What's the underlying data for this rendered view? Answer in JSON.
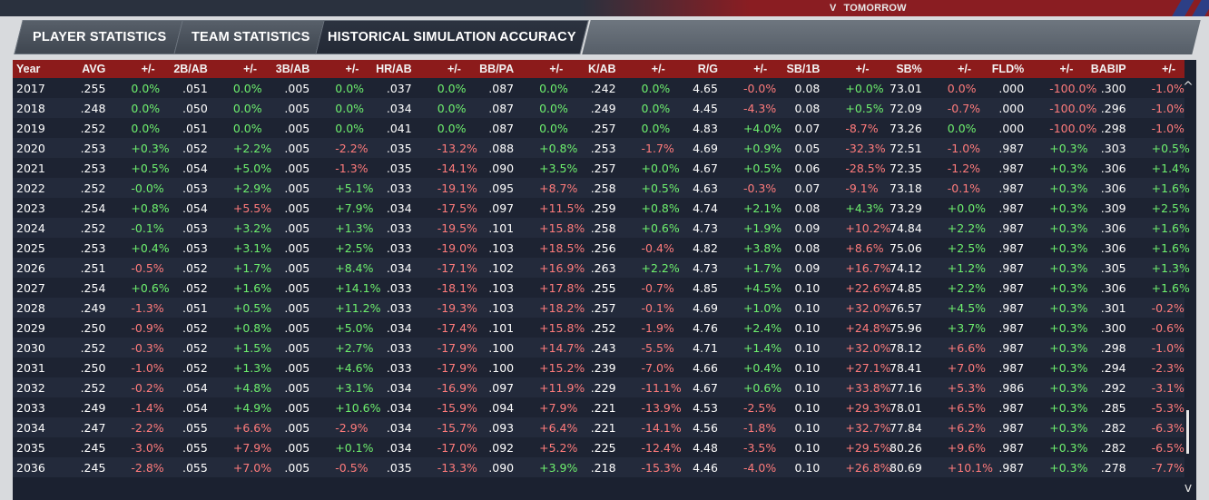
{
  "topbar": {
    "tomorrow_label": "TOMORROW",
    "chevron": "V",
    "accent": "#8a1d22"
  },
  "tabs": [
    {
      "label": "PLAYER STATISTICS"
    },
    {
      "label": "TEAM STATISTICS"
    },
    {
      "label": "HISTORICAL SIMULATION ACCURACY"
    }
  ],
  "table": {
    "headers": [
      "Year",
      "AVG",
      "+/-",
      "2B/AB",
      "+/-",
      "3B/AB",
      "+/-",
      "HR/AB",
      "+/-",
      "BB/PA",
      "+/-",
      "K/AB",
      "+/-",
      "R/G",
      "+/-",
      "SB/1B",
      "+/-",
      "SB%",
      "+/-",
      "FLD%",
      "+/-",
      "BABIP",
      "+/-"
    ],
    "rows": [
      [
        "2017",
        ".255",
        "0.0%",
        ".051",
        "0.0%",
        ".005",
        "0.0%",
        ".037",
        "0.0%",
        ".087",
        "0.0%",
        ".242",
        "0.0%",
        "4.65",
        "-0.0%",
        "0.08",
        "+0.0%",
        "73.01",
        "0.0%",
        ".000",
        "-100.0%",
        ".300",
        "-1.0%"
      ],
      [
        "2018",
        ".248",
        "0.0%",
        ".050",
        "0.0%",
        ".005",
        "0.0%",
        ".034",
        "0.0%",
        ".087",
        "0.0%",
        ".249",
        "0.0%",
        "4.45",
        "-4.3%",
        "0.08",
        "+0.5%",
        "72.09",
        "-0.7%",
        ".000",
        "-100.0%",
        ".296",
        "-1.0%"
      ],
      [
        "2019",
        ".252",
        "0.0%",
        ".051",
        "0.0%",
        ".005",
        "0.0%",
        ".041",
        "0.0%",
        ".087",
        "0.0%",
        ".257",
        "0.0%",
        "4.83",
        "+4.0%",
        "0.07",
        "-8.7%",
        "73.26",
        "0.0%",
        ".000",
        "-100.0%",
        ".298",
        "-1.0%"
      ],
      [
        "2020",
        ".253",
        "+0.3%",
        ".052",
        "+2.2%",
        ".005",
        "-2.2%",
        ".035",
        "-13.2%",
        ".088",
        "+0.8%",
        ".253",
        "-1.7%",
        "4.69",
        "+0.9%",
        "0.05",
        "-32.3%",
        "72.51",
        "-1.0%",
        ".987",
        "+0.3%",
        ".303",
        "+0.5%"
      ],
      [
        "2021",
        ".253",
        "+0.5%",
        ".054",
        "+5.0%",
        ".005",
        "-1.3%",
        ".035",
        "-14.1%",
        ".090",
        "+3.5%",
        ".257",
        "+0.0%",
        "4.67",
        "+0.5%",
        "0.06",
        "-28.5%",
        "72.35",
        "-1.2%",
        ".987",
        "+0.3%",
        ".306",
        "+1.4%"
      ],
      [
        "2022",
        ".252",
        "-0.0%",
        ".053",
        "+2.9%",
        ".005",
        "+5.1%",
        ".033",
        "-19.1%",
        ".095",
        "+8.7%",
        ".258",
        "+0.5%",
        "4.63",
        "-0.3%",
        "0.07",
        "-9.1%",
        "73.18",
        "-0.1%",
        ".987",
        "+0.3%",
        ".306",
        "+1.6%"
      ],
      [
        "2023",
        ".254",
        "+0.8%",
        ".054",
        "+5.5%",
        ".005",
        "+7.9%",
        ".034",
        "-17.5%",
        ".097",
        "+11.5%",
        ".259",
        "+0.8%",
        "4.74",
        "+2.1%",
        "0.08",
        "+4.3%",
        "73.29",
        "+0.0%",
        ".987",
        "+0.3%",
        ".309",
        "+2.5%"
      ],
      [
        "2024",
        ".252",
        "-0.1%",
        ".053",
        "+3.2%",
        ".005",
        "+1.3%",
        ".033",
        "-19.5%",
        ".101",
        "+15.8%",
        ".258",
        "+0.6%",
        "4.73",
        "+1.9%",
        "0.09",
        "+10.2%",
        "74.84",
        "+2.2%",
        ".987",
        "+0.3%",
        ".306",
        "+1.6%"
      ],
      [
        "2025",
        ".253",
        "+0.4%",
        ".053",
        "+3.1%",
        ".005",
        "+2.5%",
        ".033",
        "-19.0%",
        ".103",
        "+18.5%",
        ".256",
        "-0.4%",
        "4.82",
        "+3.8%",
        "0.08",
        "+8.6%",
        "75.06",
        "+2.5%",
        ".987",
        "+0.3%",
        ".306",
        "+1.6%"
      ],
      [
        "2026",
        ".251",
        "-0.5%",
        ".052",
        "+1.7%",
        ".005",
        "+8.4%",
        ".034",
        "-17.1%",
        ".102",
        "+16.9%",
        ".263",
        "+2.2%",
        "4.73",
        "+1.7%",
        "0.09",
        "+16.7%",
        "74.12",
        "+1.2%",
        ".987",
        "+0.3%",
        ".305",
        "+1.3%"
      ],
      [
        "2027",
        ".254",
        "+0.6%",
        ".052",
        "+1.6%",
        ".005",
        "+14.1%",
        ".033",
        "-18.1%",
        ".103",
        "+17.8%",
        ".255",
        "-0.7%",
        "4.85",
        "+4.5%",
        "0.10",
        "+22.6%",
        "74.85",
        "+2.2%",
        ".987",
        "+0.3%",
        ".306",
        "+1.6%"
      ],
      [
        "2028",
        ".249",
        "-1.3%",
        ".051",
        "+0.5%",
        ".005",
        "+11.2%",
        ".033",
        "-19.3%",
        ".103",
        "+18.2%",
        ".257",
        "-0.1%",
        "4.69",
        "+1.0%",
        "0.10",
        "+32.0%",
        "76.57",
        "+4.5%",
        ".987",
        "+0.3%",
        ".301",
        "-0.2%"
      ],
      [
        "2029",
        ".250",
        "-0.9%",
        ".052",
        "+0.8%",
        ".005",
        "+5.0%",
        ".034",
        "-17.4%",
        ".101",
        "+15.8%",
        ".252",
        "-1.9%",
        "4.76",
        "+2.4%",
        "0.10",
        "+24.8%",
        "75.96",
        "+3.7%",
        ".987",
        "+0.3%",
        ".300",
        "-0.6%"
      ],
      [
        "2030",
        ".252",
        "-0.3%",
        ".052",
        "+1.5%",
        ".005",
        "+2.7%",
        ".033",
        "-17.9%",
        ".100",
        "+14.7%",
        ".243",
        "-5.5%",
        "4.71",
        "+1.4%",
        "0.10",
        "+32.0%",
        "78.12",
        "+6.6%",
        ".987",
        "+0.3%",
        ".298",
        "-1.0%"
      ],
      [
        "2031",
        ".250",
        "-1.0%",
        ".052",
        "+1.3%",
        ".005",
        "+4.6%",
        ".033",
        "-17.9%",
        ".100",
        "+15.2%",
        ".239",
        "-7.0%",
        "4.66",
        "+0.4%",
        "0.10",
        "+27.1%",
        "78.41",
        "+7.0%",
        ".987",
        "+0.3%",
        ".294",
        "-2.3%"
      ],
      [
        "2032",
        ".252",
        "-0.2%",
        ".054",
        "+4.8%",
        ".005",
        "+3.1%",
        ".034",
        "-16.9%",
        ".097",
        "+11.9%",
        ".229",
        "-11.1%",
        "4.67",
        "+0.6%",
        "0.10",
        "+33.8%",
        "77.16",
        "+5.3%",
        ".986",
        "+0.3%",
        ".292",
        "-3.1%"
      ],
      [
        "2033",
        ".249",
        "-1.4%",
        ".054",
        "+4.9%",
        ".005",
        "+10.6%",
        ".034",
        "-15.9%",
        ".094",
        "+7.9%",
        ".221",
        "-13.9%",
        "4.53",
        "-2.5%",
        "0.10",
        "+29.3%",
        "78.01",
        "+6.5%",
        ".987",
        "+0.3%",
        ".285",
        "-5.3%"
      ],
      [
        "2034",
        ".247",
        "-2.2%",
        ".055",
        "+6.6%",
        ".005",
        "-2.9%",
        ".034",
        "-15.7%",
        ".093",
        "+6.4%",
        ".221",
        "-14.1%",
        "4.56",
        "-1.8%",
        "0.10",
        "+32.7%",
        "77.84",
        "+6.2%",
        ".987",
        "+0.3%",
        ".282",
        "-6.3%"
      ],
      [
        "2035",
        ".245",
        "-3.0%",
        ".055",
        "+7.9%",
        ".005",
        "+0.1%",
        ".034",
        "-17.0%",
        ".092",
        "+5.2%",
        ".225",
        "-12.4%",
        "4.48",
        "-3.5%",
        "0.10",
        "+29.5%",
        "80.26",
        "+9.6%",
        ".987",
        "+0.3%",
        ".282",
        "-6.5%"
      ],
      [
        "2036",
        ".245",
        "-2.8%",
        ".055",
        "+7.0%",
        ".005",
        "-0.5%",
        ".035",
        "-13.3%",
        ".090",
        "+3.9%",
        ".218",
        "-15.3%",
        "4.46",
        "-4.0%",
        "0.10",
        "+26.8%",
        "80.69",
        "+10.1%",
        ".987",
        "+0.3%",
        ".278",
        "-7.7%"
      ]
    ],
    "diff_colors": {
      "0.0%": "pos",
      "2017": {},
      "rules": "green for +, 0.0 and special cases; red for negatives as shown"
    },
    "cell_colors": [
      [
        "pos",
        "pos",
        "pos",
        "pos",
        "pos",
        "pos",
        "neg",
        "pos",
        "neg",
        "neg",
        "neg"
      ],
      [
        "pos",
        "pos",
        "pos",
        "pos",
        "pos",
        "pos",
        "neg",
        "pos",
        "neg",
        "neg",
        "neg"
      ],
      [
        "pos",
        "pos",
        "pos",
        "pos",
        "pos",
        "pos",
        "pos",
        "neg",
        "pos",
        "neg",
        "neg"
      ],
      [
        "pos",
        "pos",
        "neg",
        "neg",
        "pos",
        "neg",
        "pos",
        "neg",
        "neg",
        "pos",
        "pos"
      ],
      [
        "pos",
        "pos",
        "neg",
        "neg",
        "pos",
        "pos",
        "pos",
        "neg",
        "neg",
        "pos",
        "pos"
      ],
      [
        "pos",
        "pos",
        "pos",
        "neg",
        "neg",
        "pos",
        "neg",
        "neg",
        "neg",
        "pos",
        "pos"
      ],
      [
        "pos",
        "neg",
        "pos",
        "neg",
        "neg",
        "pos",
        "pos",
        "pos",
        "pos",
        "pos",
        "pos"
      ],
      [
        "pos",
        "pos",
        "pos",
        "neg",
        "neg",
        "pos",
        "pos",
        "neg",
        "pos",
        "pos",
        "pos"
      ],
      [
        "pos",
        "pos",
        "pos",
        "neg",
        "neg",
        "neg",
        "pos",
        "neg",
        "pos",
        "pos",
        "pos"
      ],
      [
        "neg",
        "pos",
        "pos",
        "neg",
        "neg",
        "pos",
        "pos",
        "neg",
        "pos",
        "pos",
        "pos"
      ],
      [
        "pos",
        "pos",
        "pos",
        "neg",
        "neg",
        "neg",
        "pos",
        "neg",
        "pos",
        "pos",
        "pos"
      ],
      [
        "neg",
        "pos",
        "pos",
        "neg",
        "neg",
        "neg",
        "pos",
        "neg",
        "pos",
        "pos",
        "neg"
      ],
      [
        "neg",
        "pos",
        "pos",
        "neg",
        "neg",
        "neg",
        "pos",
        "neg",
        "pos",
        "pos",
        "neg"
      ],
      [
        "neg",
        "pos",
        "pos",
        "neg",
        "neg",
        "neg",
        "pos",
        "neg",
        "neg",
        "pos",
        "neg"
      ],
      [
        "neg",
        "pos",
        "pos",
        "neg",
        "neg",
        "neg",
        "pos",
        "neg",
        "neg",
        "pos",
        "neg"
      ],
      [
        "neg",
        "pos",
        "pos",
        "neg",
        "neg",
        "neg",
        "pos",
        "neg",
        "neg",
        "pos",
        "neg"
      ],
      [
        "neg",
        "pos",
        "pos",
        "neg",
        "neg",
        "neg",
        "neg",
        "neg",
        "neg",
        "pos",
        "neg"
      ],
      [
        "neg",
        "neg",
        "neg",
        "neg",
        "neg",
        "neg",
        "neg",
        "neg",
        "neg",
        "pos",
        "neg"
      ],
      [
        "neg",
        "neg",
        "pos",
        "neg",
        "neg",
        "neg",
        "neg",
        "neg",
        "neg",
        "pos",
        "neg"
      ],
      [
        "neg",
        "neg",
        "neg",
        "neg",
        "pos",
        "neg",
        "neg",
        "neg",
        "neg",
        "pos",
        "neg"
      ]
    ]
  },
  "scroll": {
    "up_icon": "^",
    "down_icon": "v"
  },
  "colors": {
    "header_bg": "#8c1b1b",
    "positive": "#6ef06e",
    "negative": "#ff7b7b"
  }
}
